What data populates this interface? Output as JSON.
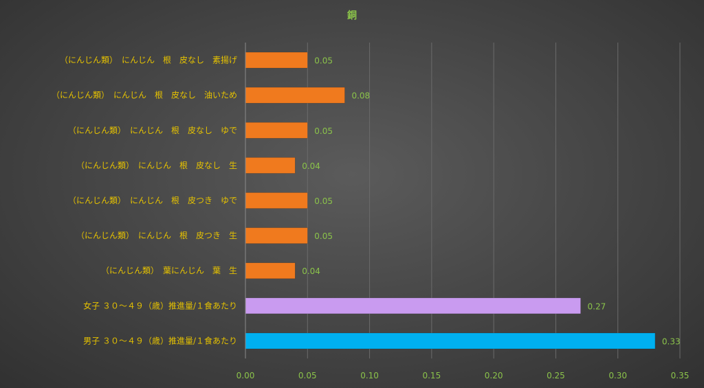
{
  "chart_data": {
    "type": "bar",
    "orientation": "horizontal",
    "title": "銅",
    "xlabel": "",
    "ylabel": "",
    "xlim": [
      0,
      0.35
    ],
    "ticks": [
      "0.00",
      "0.05",
      "0.10",
      "0.15",
      "0.20",
      "0.25",
      "0.30",
      "0.35"
    ],
    "tick_values": [
      0,
      0.05,
      0.1,
      0.15,
      0.2,
      0.25,
      0.3,
      0.35
    ],
    "grid": "vertical",
    "categories": [
      "（にんじん類）　にんじん　根　皮なし　素揚げ",
      "（にんじん類）　にんじん　根　皮なし　油いため",
      "（にんじん類）　にんじん　根　皮なし　ゆで",
      "（にんじん類）　にんじん　根　皮なし　生",
      "（にんじん類）　にんじん　根　皮つき　ゆで",
      "（にんじん類）　にんじん　根　皮つき　生",
      "（にんじん類）　葉にんじん　葉　生",
      "女子 ３０～４９（歳）推進量/１食あたり",
      "男子 ３０～４９（歳）推進量/１食あたり"
    ],
    "values": [
      0.05,
      0.08,
      0.05,
      0.04,
      0.05,
      0.05,
      0.04,
      0.27,
      0.33
    ],
    "value_labels": [
      "0.05",
      "0.08",
      "0.05",
      "0.04",
      "0.05",
      "0.05",
      "0.04",
      "0.27",
      "0.33"
    ],
    "colors": [
      "#f07a1e",
      "#f07a1e",
      "#f07a1e",
      "#f07a1e",
      "#f07a1e",
      "#f07a1e",
      "#f07a1e",
      "#c99bf0",
      "#00b0f0"
    ]
  }
}
